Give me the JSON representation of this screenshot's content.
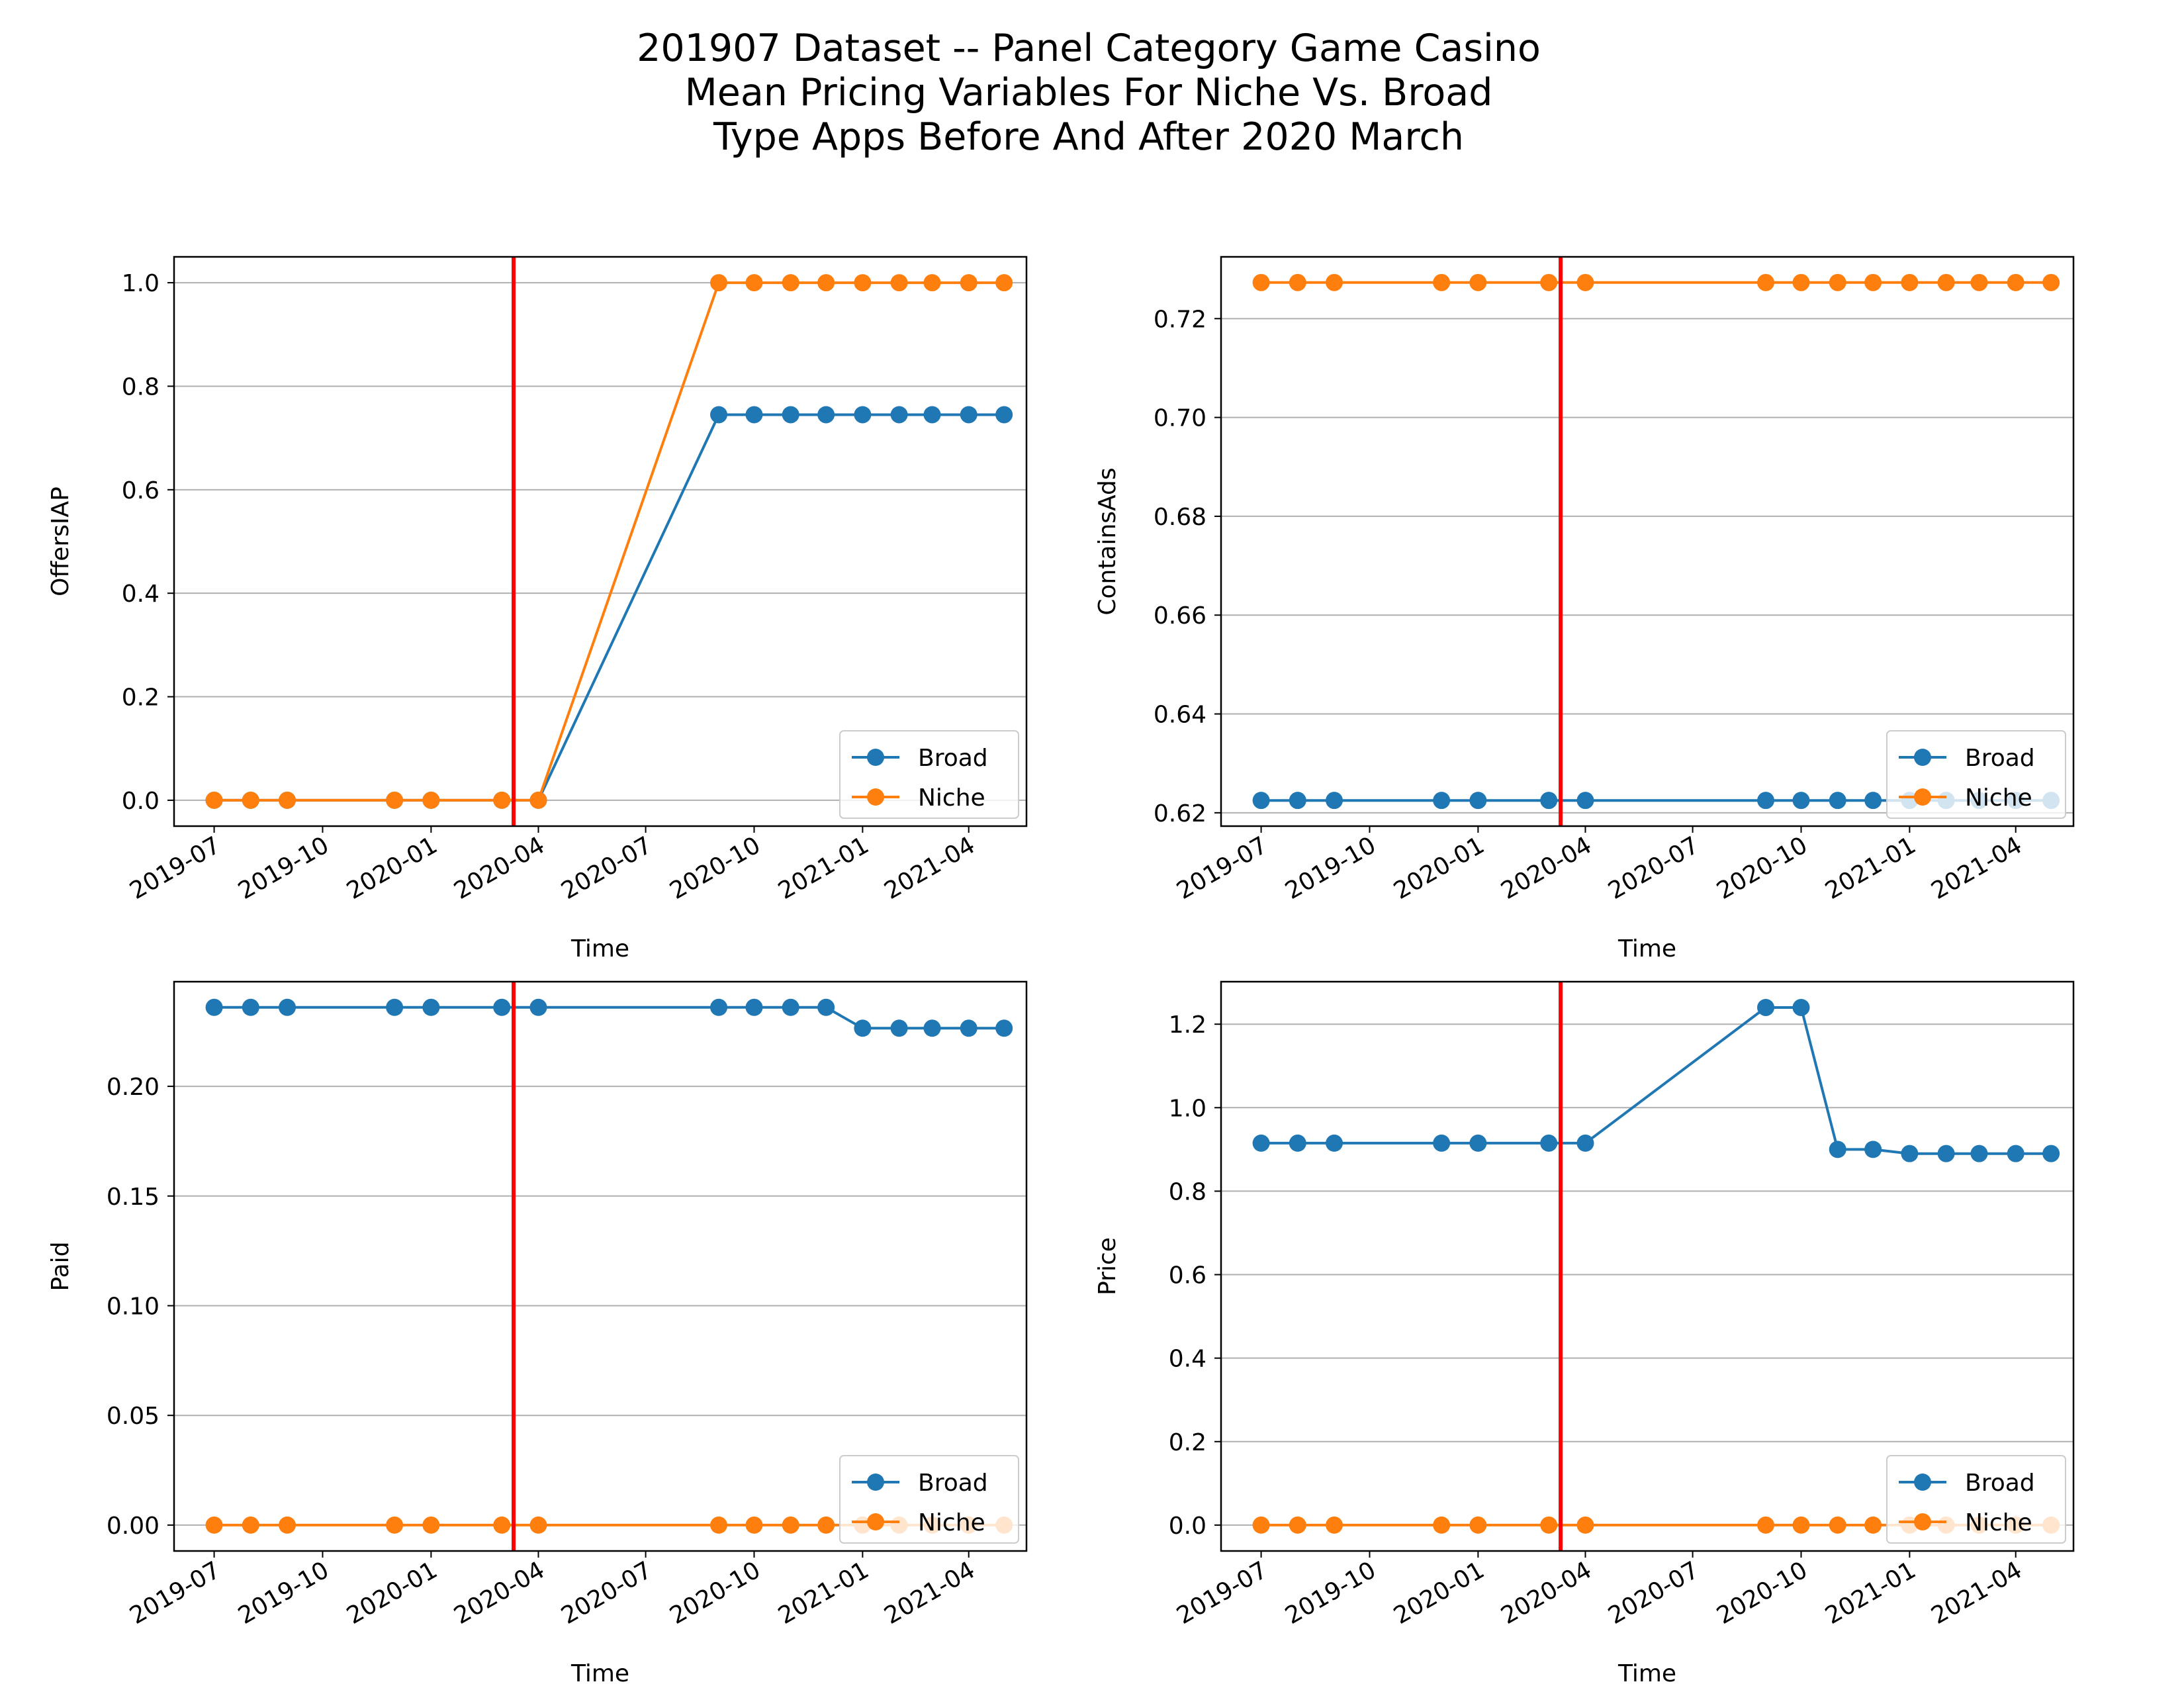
{
  "title_lines": [
    "201907 Dataset -- Panel Category Game Casino",
    "Mean Pricing Variables For Niche Vs. Broad",
    "Type Apps Before And After 2020 March"
  ],
  "colors": {
    "broad": "#1f77b4",
    "niche": "#ff7f0e",
    "event_line": "#ff0000",
    "grid": "#b0b0b0"
  },
  "chart_data": [
    {
      "type": "line",
      "xlabel": "Time",
      "ylabel": "OffersIAP",
      "x_ticks": [
        "2019-07",
        "2019-10",
        "2020-01",
        "2020-04",
        "2020-07",
        "2020-10",
        "2021-01",
        "2021-04"
      ],
      "y_ticks": [
        "0.0",
        "0.2",
        "0.4",
        "0.6",
        "0.8",
        "1.0"
      ],
      "ylim": [
        -0.05,
        1.05
      ],
      "xlim": [
        "2019-05-28",
        "2021-05-20"
      ],
      "event_date": "2020-03-11",
      "x": [
        "2019-07-01",
        "2019-08-01",
        "2019-09-01",
        "2019-12-01",
        "2020-01-01",
        "2020-03-01",
        "2020-04-01",
        "2020-09-01",
        "2020-10-01",
        "2020-11-01",
        "2020-12-01",
        "2021-01-01",
        "2021-02-01",
        "2021-03-01",
        "2021-04-01",
        "2021-05-01"
      ],
      "series": [
        {
          "name": "Broad",
          "values": [
            0,
            0,
            0,
            0,
            0,
            0,
            0,
            0.745,
            0.745,
            0.745,
            0.745,
            0.745,
            0.745,
            0.745,
            0.745,
            0.745
          ]
        },
        {
          "name": "Niche",
          "values": [
            0,
            0,
            0,
            0,
            0,
            0,
            0,
            1.0,
            1.0,
            1.0,
            1.0,
            1.0,
            1.0,
            1.0,
            1.0,
            1.0
          ]
        }
      ],
      "legend": "lower-right",
      "grid": "horizontal"
    },
    {
      "type": "line",
      "xlabel": "Time",
      "ylabel": "ContainsAds",
      "x_ticks": [
        "2019-07",
        "2019-10",
        "2020-01",
        "2020-04",
        "2020-07",
        "2020-10",
        "2021-01",
        "2021-04"
      ],
      "y_ticks": [
        "0.62",
        "0.64",
        "0.66",
        "0.68",
        "0.70",
        "0.72"
      ],
      "ylim": [
        0.6173,
        0.7325
      ],
      "xlim": [
        "2019-05-28",
        "2021-05-20"
      ],
      "event_date": "2020-03-11",
      "x": [
        "2019-07-01",
        "2019-08-01",
        "2019-09-01",
        "2019-12-01",
        "2020-01-01",
        "2020-03-01",
        "2020-04-01",
        "2020-09-01",
        "2020-10-01",
        "2020-11-01",
        "2020-12-01",
        "2021-01-01",
        "2021-02-01",
        "2021-03-01",
        "2021-04-01",
        "2021-05-01"
      ],
      "series": [
        {
          "name": "Broad",
          "values": [
            0.6225,
            0.6225,
            0.6225,
            0.6225,
            0.6225,
            0.6225,
            0.6225,
            0.6225,
            0.6225,
            0.6225,
            0.6225,
            0.6225,
            0.6225,
            0.6225,
            0.6225,
            0.6225
          ]
        },
        {
          "name": "Niche",
          "values": [
            0.7273,
            0.7273,
            0.7273,
            0.7273,
            0.7273,
            0.7273,
            0.7273,
            0.7273,
            0.7273,
            0.7273,
            0.7273,
            0.7273,
            0.7273,
            0.7273,
            0.7273,
            0.7273
          ]
        }
      ],
      "legend": "lower-right",
      "grid": "horizontal"
    },
    {
      "type": "line",
      "xlabel": "Time",
      "ylabel": "Paid",
      "x_ticks": [
        "2019-07",
        "2019-10",
        "2020-01",
        "2020-04",
        "2020-07",
        "2020-10",
        "2021-01",
        "2021-04"
      ],
      "y_ticks": [
        "0.00",
        "0.05",
        "0.10",
        "0.15",
        "0.20"
      ],
      "ylim": [
        -0.0118,
        0.2477
      ],
      "xlim": [
        "2019-05-28",
        "2021-05-20"
      ],
      "event_date": "2020-03-11",
      "x": [
        "2019-07-01",
        "2019-08-01",
        "2019-09-01",
        "2019-12-01",
        "2020-01-01",
        "2020-03-01",
        "2020-04-01",
        "2020-09-01",
        "2020-10-01",
        "2020-11-01",
        "2020-12-01",
        "2021-01-01",
        "2021-02-01",
        "2021-03-01",
        "2021-04-01",
        "2021-05-01"
      ],
      "series": [
        {
          "name": "Broad",
          "values": [
            0.236,
            0.236,
            0.236,
            0.236,
            0.236,
            0.236,
            0.236,
            0.236,
            0.236,
            0.236,
            0.236,
            0.2265,
            0.2265,
            0.2265,
            0.2265,
            0.2265
          ]
        },
        {
          "name": "Niche",
          "values": [
            0,
            0,
            0,
            0,
            0,
            0,
            0,
            0,
            0,
            0,
            0,
            0,
            0,
            0,
            0,
            0
          ]
        }
      ],
      "legend": "lower-right",
      "grid": "horizontal"
    },
    {
      "type": "line",
      "xlabel": "Time",
      "ylabel": "Price",
      "x_ticks": [
        "2019-07",
        "2019-10",
        "2020-01",
        "2020-04",
        "2020-07",
        "2020-10",
        "2021-01",
        "2021-04"
      ],
      "y_ticks": [
        "0.0",
        "0.2",
        "0.4",
        "0.6",
        "0.8",
        "1.0",
        "1.2"
      ],
      "ylim": [
        -0.062,
        1.3018
      ],
      "xlim": [
        "2019-05-28",
        "2021-05-20"
      ],
      "event_date": "2020-03-11",
      "x": [
        "2019-07-01",
        "2019-08-01",
        "2019-09-01",
        "2019-12-01",
        "2020-01-01",
        "2020-03-01",
        "2020-04-01",
        "2020-09-01",
        "2020-10-01",
        "2020-11-01",
        "2020-12-01",
        "2021-01-01",
        "2021-02-01",
        "2021-03-01",
        "2021-04-01",
        "2021-05-01"
      ],
      "series": [
        {
          "name": "Broad",
          "values": [
            0.915,
            0.915,
            0.915,
            0.915,
            0.915,
            0.915,
            0.915,
            1.24,
            1.24,
            0.9,
            0.9,
            0.89,
            0.89,
            0.89,
            0.89,
            0.89
          ]
        },
        {
          "name": "Niche",
          "values": [
            0,
            0,
            0,
            0,
            0,
            0,
            0,
            0,
            0,
            0,
            0,
            0,
            0,
            0,
            0,
            0
          ]
        }
      ],
      "legend": "lower-right",
      "grid": "horizontal"
    }
  ]
}
